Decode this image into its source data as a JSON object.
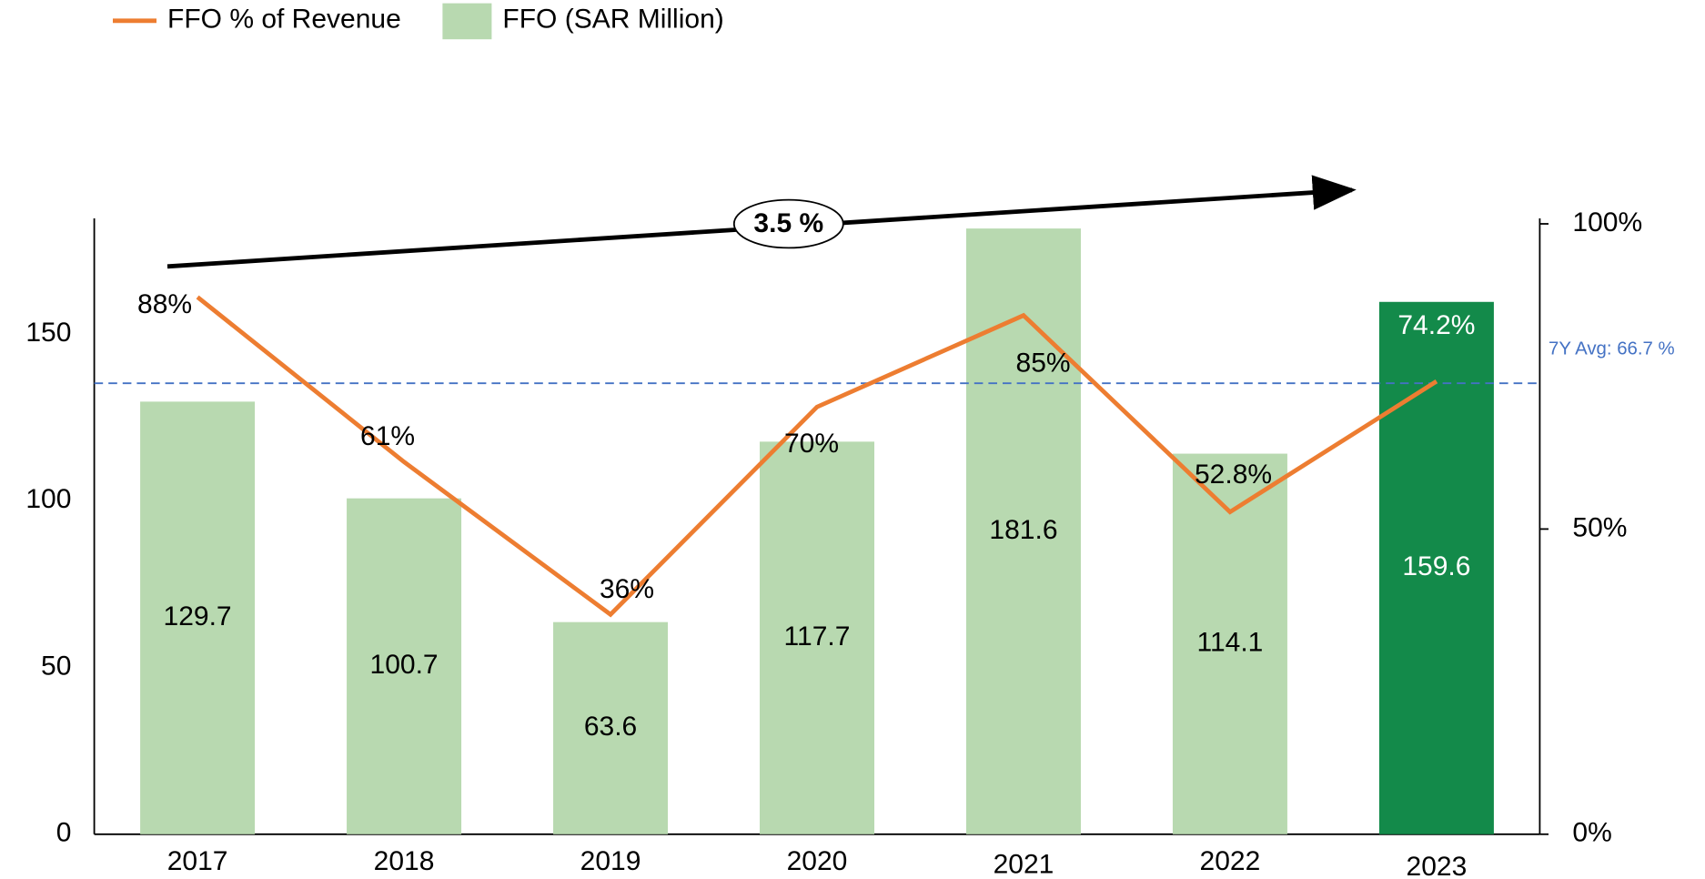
{
  "chart_data": {
    "type": "bar_line",
    "categories": [
      "2017",
      "2018",
      "2019",
      "2020",
      "2021",
      "2022",
      "2023"
    ],
    "series": [
      {
        "name": "FFO (SAR Million)",
        "type": "bar",
        "color": "#b8d9b0",
        "colors": [
          "#b8d9b0",
          "#b8d9b0",
          "#b8d9b0",
          "#b8d9b0",
          "#b8d9b0",
          "#b8d9b0",
          "#138a4a"
        ],
        "values": [
          129.7,
          100.7,
          63.6,
          117.7,
          181.6,
          114.1,
          159.6
        ]
      },
      {
        "name": "FFO % of Revenue",
        "type": "line",
        "color": "#ed7d31",
        "axis": "y2",
        "values": [
          88,
          61,
          36,
          70,
          85,
          52.8,
          74.2
        ],
        "value_labels": [
          "88%",
          "61%",
          "36%",
          "70%",
          "85%",
          "52.8%",
          "74.2%"
        ]
      }
    ],
    "ylim": [
      0,
      183
    ],
    "yticks": [
      0,
      50,
      100,
      150
    ],
    "y2lim": [
      0,
      100
    ],
    "y2ticks": [
      {
        "value": 0,
        "label": "0%"
      },
      {
        "value": 50,
        "label": "50%"
      },
      {
        "value": 100,
        "label": "100%"
      }
    ],
    "annotations": [
      "3.5 %",
      "7Y Avg: 66.7 %"
    ]
  }
}
